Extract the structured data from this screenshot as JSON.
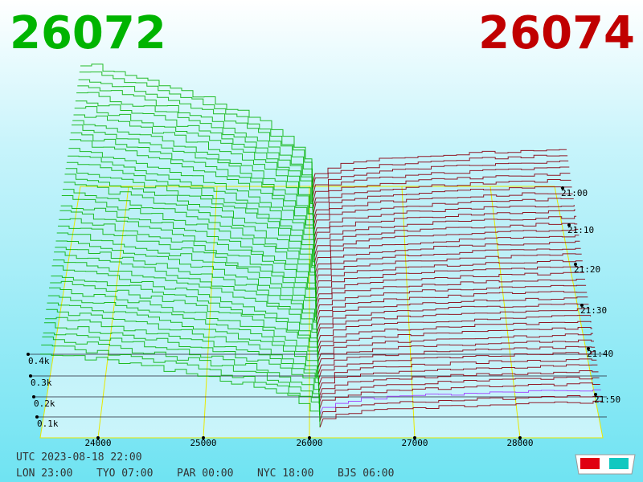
{
  "header": {
    "bid": "26072",
    "ask": "26074"
  },
  "axis": {
    "depth_labels": [
      "0.1k",
      "0.2k",
      "0.3k",
      "0.4k"
    ],
    "price_labels": [
      "24000",
      "25000",
      "26000",
      "27000",
      "28000"
    ],
    "time_labels": [
      "21:00",
      "21:10",
      "21:20",
      "21:30",
      "21:40",
      "21:50"
    ]
  },
  "footer": {
    "utc": "UTC 2023-08-18 22:00",
    "zones": [
      "LON 23:00",
      "TYO 07:00",
      "PAR 00:00",
      "NYC 18:00",
      "BJS 06:00"
    ]
  }
}
